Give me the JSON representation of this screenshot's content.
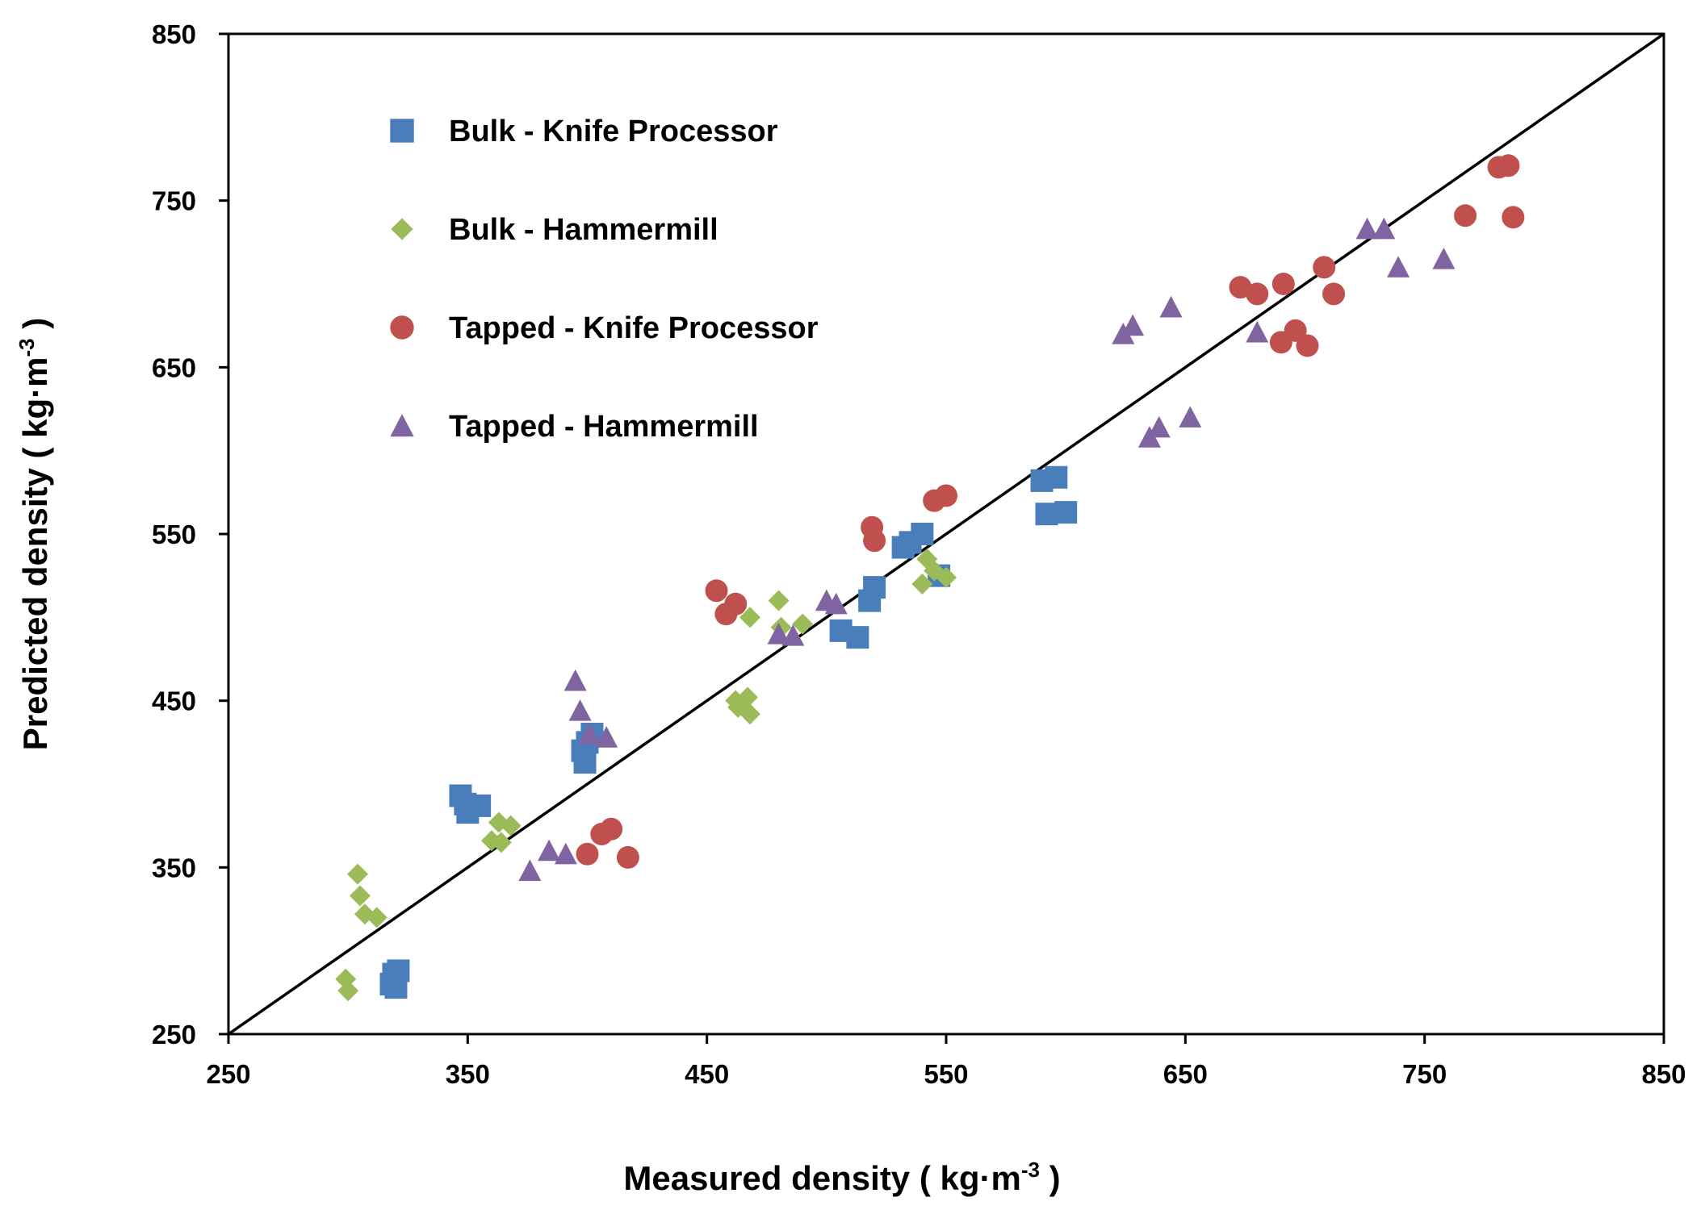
{
  "chart_data": {
    "type": "scatter",
    "title": "",
    "xlabel": {
      "main": "Measured  density  ( kg·m",
      "sup": "-3",
      "end": " )"
    },
    "ylabel": {
      "main": "Predicted density  ( kg·m",
      "sup": "-3",
      "end": " )"
    },
    "xlim": [
      250,
      850
    ],
    "ylim": [
      250,
      850
    ],
    "xticks": [
      "250",
      "350",
      "450",
      "550",
      "650",
      "750",
      "850"
    ],
    "yticks": [
      "250",
      "350",
      "450",
      "550",
      "650",
      "750",
      "850"
    ],
    "grid": false,
    "legend_position": "top-left",
    "reference_line": {
      "type": "y=x",
      "color": "#000000"
    },
    "series": [
      {
        "name": "Bulk - Knife Processor",
        "marker": "square",
        "color": "#4A7EBB",
        "points": [
          [
            318,
            280
          ],
          [
            319,
            286
          ],
          [
            320,
            278
          ],
          [
            321,
            288
          ],
          [
            347,
            393
          ],
          [
            349,
            388
          ],
          [
            350,
            383
          ],
          [
            355,
            387
          ],
          [
            398,
            420
          ],
          [
            399,
            413
          ],
          [
            400,
            425
          ],
          [
            402,
            430
          ],
          [
            506,
            492
          ],
          [
            513,
            488
          ],
          [
            518,
            510
          ],
          [
            520,
            518
          ],
          [
            532,
            542
          ],
          [
            535,
            545
          ],
          [
            540,
            550
          ],
          [
            547,
            525
          ],
          [
            590,
            582
          ],
          [
            592,
            562
          ],
          [
            596,
            584
          ],
          [
            600,
            563
          ]
        ]
      },
      {
        "name": "Bulk - Hammermill",
        "marker": "diamond",
        "color": "#9BBB59",
        "points": [
          [
            299,
            283
          ],
          [
            300,
            276
          ],
          [
            304,
            346
          ],
          [
            305,
            333
          ],
          [
            307,
            322
          ],
          [
            312,
            320
          ],
          [
            360,
            366
          ],
          [
            363,
            377
          ],
          [
            364,
            365
          ],
          [
            368,
            375
          ],
          [
            462,
            450
          ],
          [
            463,
            446
          ],
          [
            467,
            452
          ],
          [
            468,
            442
          ],
          [
            468,
            500
          ],
          [
            480,
            510
          ],
          [
            481,
            494
          ],
          [
            490,
            496
          ],
          [
            540,
            520
          ],
          [
            542,
            535
          ],
          [
            545,
            528
          ],
          [
            550,
            524
          ]
        ]
      },
      {
        "name": "Tapped - Knife Processor",
        "marker": "circle",
        "color": "#C0504D",
        "points": [
          [
            400,
            358
          ],
          [
            406,
            370
          ],
          [
            410,
            373
          ],
          [
            417,
            356
          ],
          [
            454,
            516
          ],
          [
            458,
            502
          ],
          [
            462,
            508
          ],
          [
            519,
            554
          ],
          [
            520,
            546
          ],
          [
            545,
            570
          ],
          [
            550,
            573
          ],
          [
            673,
            698
          ],
          [
            680,
            694
          ],
          [
            690,
            665
          ],
          [
            691,
            700
          ],
          [
            696,
            672
          ],
          [
            701,
            663
          ],
          [
            708,
            710
          ],
          [
            712,
            694
          ],
          [
            767,
            741
          ],
          [
            781,
            770
          ],
          [
            785,
            771
          ],
          [
            787,
            740
          ]
        ]
      },
      {
        "name": "Tapped - Hammermill",
        "marker": "triangle",
        "color": "#8064A2",
        "points": [
          [
            376,
            348
          ],
          [
            384,
            360
          ],
          [
            391,
            358
          ],
          [
            395,
            462
          ],
          [
            397,
            444
          ],
          [
            401,
            430
          ],
          [
            408,
            428
          ],
          [
            480,
            490
          ],
          [
            486,
            489
          ],
          [
            500,
            510
          ],
          [
            504,
            508
          ],
          [
            624,
            670
          ],
          [
            628,
            675
          ],
          [
            635,
            608
          ],
          [
            639,
            614
          ],
          [
            644,
            686
          ],
          [
            652,
            620
          ],
          [
            680,
            671
          ],
          [
            726,
            733
          ],
          [
            733,
            733
          ],
          [
            739,
            710
          ],
          [
            758,
            715
          ]
        ]
      }
    ]
  }
}
